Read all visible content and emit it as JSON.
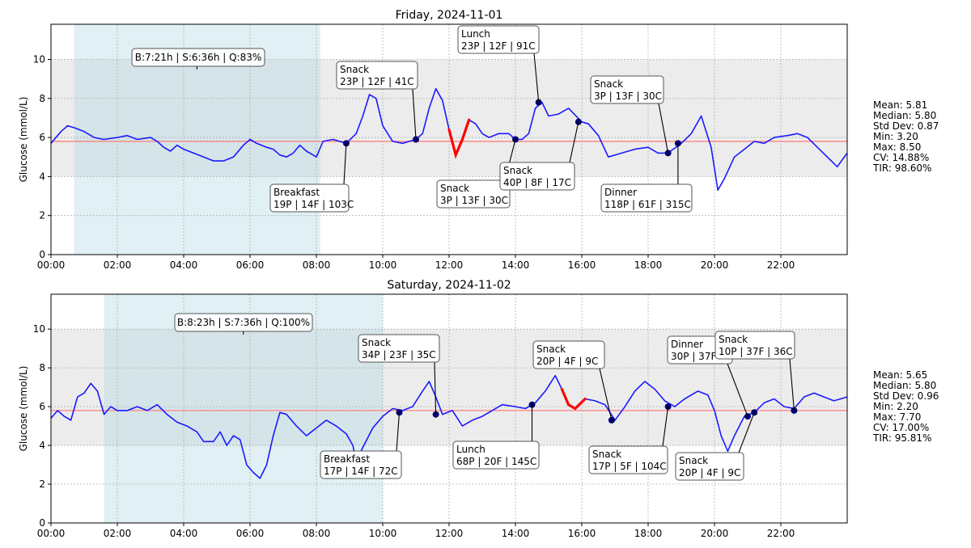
{
  "chart_data": [
    {
      "type": "line",
      "title": "Friday, 2024-11-01",
      "xlabel": "",
      "ylabel": "Glucose (mmol/L)",
      "xlim": [
        "00:00",
        "24:00"
      ],
      "ylim": [
        0,
        11.8
      ],
      "x_ticks": [
        "00:00",
        "02:00",
        "04:00",
        "06:00",
        "08:00",
        "10:00",
        "12:00",
        "14:00",
        "16:00",
        "18:00",
        "20:00",
        "22:00"
      ],
      "y_ticks": [
        0,
        2,
        4,
        6,
        8,
        10
      ],
      "grid": true,
      "colors": {
        "line": "#1a1aff",
        "highlight": "#ff0000",
        "mean_line": "#ff8080",
        "target_band": "#ececec",
        "sleep_band": "#add8e6",
        "marker": "#00006e"
      },
      "target_range": [
        4,
        10
      ],
      "mean_line": 5.8,
      "sleep_window": [
        "00:42",
        "08:07"
      ],
      "sleep_label": "B:7:21h | S:6:36h | Q:83%",
      "sleep_label_time": "04:24",
      "series": [
        {
          "values": [
            [
              0,
              5.7
            ],
            [
              0.3,
              6.3
            ],
            [
              0.5,
              6.6
            ],
            [
              0.7,
              6.5
            ],
            [
              1,
              6.3
            ],
            [
              1.3,
              6.0
            ],
            [
              1.6,
              5.9
            ],
            [
              2,
              6.0
            ],
            [
              2.3,
              6.1
            ],
            [
              2.6,
              5.9
            ],
            [
              3,
              6.0
            ],
            [
              3.2,
              5.8
            ],
            [
              3.4,
              5.5
            ],
            [
              3.6,
              5.3
            ],
            [
              3.8,
              5.6
            ],
            [
              4,
              5.4
            ],
            [
              4.3,
              5.2
            ],
            [
              4.6,
              5.0
            ],
            [
              4.9,
              4.8
            ],
            [
              5.2,
              4.8
            ],
            [
              5.5,
              5.0
            ],
            [
              5.8,
              5.6
            ],
            [
              6,
              5.9
            ],
            [
              6.2,
              5.7
            ],
            [
              6.5,
              5.5
            ],
            [
              6.7,
              5.4
            ],
            [
              6.9,
              5.1
            ],
            [
              7.1,
              5.0
            ],
            [
              7.3,
              5.2
            ],
            [
              7.5,
              5.6
            ],
            [
              7.7,
              5.3
            ],
            [
              8,
              5.0
            ],
            [
              8.2,
              5.8
            ],
            [
              8.5,
              5.9
            ],
            [
              8.9,
              5.7
            ],
            [
              9.2,
              6.2
            ],
            [
              9.4,
              7.1
            ],
            [
              9.6,
              8.2
            ],
            [
              9.8,
              8.0
            ],
            [
              10,
              6.6
            ],
            [
              10.3,
              5.8
            ],
            [
              10.6,
              5.7
            ],
            [
              11,
              5.9
            ],
            [
              11.2,
              6.2
            ],
            [
              11.4,
              7.5
            ],
            [
              11.6,
              8.5
            ],
            [
              11.8,
              7.9
            ],
            [
              12,
              6.4
            ],
            [
              12.2,
              5.1
            ],
            [
              12.4,
              5.9
            ],
            [
              12.6,
              6.9
            ],
            [
              12.8,
              6.7
            ],
            [
              13,
              6.2
            ],
            [
              13.2,
              6.0
            ],
            [
              13.5,
              6.2
            ],
            [
              13.8,
              6.2
            ],
            [
              14,
              5.9
            ],
            [
              14.2,
              5.9
            ],
            [
              14.4,
              6.2
            ],
            [
              14.6,
              7.5
            ],
            [
              14.8,
              7.8
            ],
            [
              15,
              7.1
            ],
            [
              15.3,
              7.2
            ],
            [
              15.6,
              7.5
            ],
            [
              16,
              6.8
            ],
            [
              16.2,
              6.7
            ],
            [
              16.5,
              6.1
            ],
            [
              16.8,
              5.0
            ],
            [
              17.2,
              5.2
            ],
            [
              17.6,
              5.4
            ],
            [
              18,
              5.5
            ],
            [
              18.3,
              5.2
            ],
            [
              18.6,
              5.2
            ],
            [
              19,
              5.7
            ],
            [
              19.3,
              6.2
            ],
            [
              19.6,
              7.1
            ],
            [
              19.9,
              5.5
            ],
            [
              20.1,
              3.3
            ],
            [
              20.3,
              3.9
            ],
            [
              20.6,
              5.0
            ],
            [
              20.9,
              5.4
            ],
            [
              21.2,
              5.8
            ],
            [
              21.5,
              5.7
            ],
            [
              21.8,
              6.0
            ],
            [
              22.2,
              6.1
            ],
            [
              22.5,
              6.2
            ],
            [
              22.8,
              6.0
            ],
            [
              23.1,
              5.5
            ],
            [
              23.4,
              5.0
            ],
            [
              23.7,
              4.5
            ],
            [
              24,
              5.2
            ]
          ]
        }
      ],
      "highlight_segment": [
        "12:00",
        "12:36"
      ],
      "markers": [
        {
          "time": "08:54",
          "value": 5.7
        },
        {
          "time": "11:00",
          "value": 5.9
        },
        {
          "time": "14:00",
          "value": 5.9
        },
        {
          "time": "14:42",
          "value": 7.8
        },
        {
          "time": "15:54",
          "value": 6.8
        },
        {
          "time": "18:36",
          "value": 5.2
        },
        {
          "time": "18:54",
          "value": 5.7
        }
      ],
      "annotations": [
        {
          "title": "Breakfast",
          "detail": "19P | 14F | 103C",
          "time": "08:54"
        },
        {
          "title": "Snack",
          "detail": "23P | 12F | 41C",
          "time": "11:00"
        },
        {
          "title": "Lunch",
          "detail": "23P | 12F | 91C",
          "time": "14:42"
        },
        {
          "title": "Snack",
          "detail": "3P | 13F | 30C",
          "time": "14:00"
        },
        {
          "title": "Snack",
          "detail": "40P | 8F | 17C",
          "time": "15:54"
        },
        {
          "title": "Snack",
          "detail": "3P | 13F | 30C",
          "time": "18:36"
        },
        {
          "title": "Dinner",
          "detail": "118P | 61F | 315C",
          "time": "18:54"
        }
      ],
      "stats": [
        "Mean: 5.81",
        "Median: 5.80",
        "Std Dev: 0.87",
        "Min: 3.20",
        "Max: 8.50",
        "CV: 14.88%",
        "TIR: 98.60%"
      ]
    },
    {
      "type": "line",
      "title": "Saturday, 2024-11-02",
      "xlabel": "",
      "ylabel": "Glucose (mmol/L)",
      "xlim": [
        "00:00",
        "24:00"
      ],
      "ylim": [
        0,
        11.8
      ],
      "x_ticks": [
        "00:00",
        "02:00",
        "04:00",
        "06:00",
        "08:00",
        "10:00",
        "12:00",
        "14:00",
        "16:00",
        "18:00",
        "20:00",
        "22:00"
      ],
      "y_ticks": [
        0,
        2,
        4,
        6,
        8,
        10
      ],
      "grid": true,
      "colors": {
        "line": "#1a1aff",
        "highlight": "#ff0000",
        "mean_line": "#ff8080",
        "target_band": "#ececec",
        "sleep_band": "#add8e6",
        "marker": "#00006e"
      },
      "target_range": [
        4,
        10
      ],
      "mean_line": 5.8,
      "sleep_window": [
        "01:36",
        "10:00"
      ],
      "sleep_label": "B:8:23h | S:7:36h | Q:100%",
      "sleep_label_time": "05:48",
      "series": [
        {
          "values": [
            [
              0,
              5.4
            ],
            [
              0.2,
              5.8
            ],
            [
              0.4,
              5.5
            ],
            [
              0.6,
              5.3
            ],
            [
              0.8,
              6.5
            ],
            [
              1,
              6.7
            ],
            [
              1.2,
              7.2
            ],
            [
              1.4,
              6.8
            ],
            [
              1.6,
              5.6
            ],
            [
              1.8,
              6.0
            ],
            [
              2,
              5.8
            ],
            [
              2.3,
              5.8
            ],
            [
              2.6,
              6.0
            ],
            [
              2.9,
              5.8
            ],
            [
              3.2,
              6.1
            ],
            [
              3.5,
              5.6
            ],
            [
              3.8,
              5.2
            ],
            [
              4.1,
              5.0
            ],
            [
              4.4,
              4.7
            ],
            [
              4.6,
              4.2
            ],
            [
              4.9,
              4.2
            ],
            [
              5.1,
              4.7
            ],
            [
              5.3,
              4.0
            ],
            [
              5.5,
              4.5
            ],
            [
              5.7,
              4.3
            ],
            [
              5.9,
              3.0
            ],
            [
              6.1,
              2.6
            ],
            [
              6.3,
              2.3
            ],
            [
              6.5,
              3.0
            ],
            [
              6.7,
              4.5
            ],
            [
              6.9,
              5.7
            ],
            [
              7.1,
              5.6
            ],
            [
              7.4,
              5.0
            ],
            [
              7.7,
              4.5
            ],
            [
              8,
              4.9
            ],
            [
              8.3,
              5.3
            ],
            [
              8.6,
              5.0
            ],
            [
              8.9,
              4.6
            ],
            [
              9.1,
              4.0
            ],
            [
              9.2,
              3.2
            ],
            [
              9.4,
              3.9
            ],
            [
              9.7,
              4.9
            ],
            [
              10,
              5.5
            ],
            [
              10.3,
              5.9
            ],
            [
              10.6,
              5.8
            ],
            [
              10.9,
              6.0
            ],
            [
              11.2,
              6.8
            ],
            [
              11.4,
              7.3
            ],
            [
              11.6,
              6.5
            ],
            [
              11.8,
              5.6
            ],
            [
              12.1,
              5.8
            ],
            [
              12.4,
              5.0
            ],
            [
              12.7,
              5.3
            ],
            [
              13,
              5.5
            ],
            [
              13.3,
              5.8
            ],
            [
              13.6,
              6.1
            ],
            [
              14,
              6.0
            ],
            [
              14.3,
              5.9
            ],
            [
              14.6,
              6.2
            ],
            [
              14.9,
              6.8
            ],
            [
              15.2,
              7.6
            ],
            [
              15.4,
              6.9
            ],
            [
              15.6,
              6.1
            ],
            [
              15.8,
              5.9
            ],
            [
              16.1,
              6.4
            ],
            [
              16.4,
              6.3
            ],
            [
              16.7,
              6.1
            ],
            [
              17,
              5.3
            ],
            [
              17.3,
              6.0
            ],
            [
              17.6,
              6.8
            ],
            [
              17.9,
              7.3
            ],
            [
              18.2,
              6.9
            ],
            [
              18.5,
              6.3
            ],
            [
              18.8,
              6.0
            ],
            [
              19.1,
              6.4
            ],
            [
              19.5,
              6.8
            ],
            [
              19.8,
              6.6
            ],
            [
              20,
              5.8
            ],
            [
              20.2,
              4.5
            ],
            [
              20.4,
              3.7
            ],
            [
              20.6,
              4.5
            ],
            [
              20.9,
              5.5
            ],
            [
              21.2,
              5.7
            ],
            [
              21.5,
              6.2
            ],
            [
              21.8,
              6.4
            ],
            [
              22.1,
              6.0
            ],
            [
              22.4,
              5.9
            ],
            [
              22.7,
              6.5
            ],
            [
              23,
              6.7
            ],
            [
              23.3,
              6.5
            ],
            [
              23.6,
              6.3
            ],
            [
              24,
              6.5
            ]
          ]
        }
      ],
      "highlight_segment": [
        "15:24",
        "16:12"
      ],
      "markers": [
        {
          "time": "10:30",
          "value": 5.7
        },
        {
          "time": "11:36",
          "value": 5.6
        },
        {
          "time": "14:30",
          "value": 6.1
        },
        {
          "time": "16:54",
          "value": 5.3
        },
        {
          "time": "18:36",
          "value": 6.0
        },
        {
          "time": "21:00",
          "value": 5.5
        },
        {
          "time": "21:12",
          "value": 5.7
        },
        {
          "time": "22:24",
          "value": 5.8
        }
      ],
      "annotations": [
        {
          "title": "Breakfast",
          "detail": "17P | 14F | 72C",
          "time": "10:30"
        },
        {
          "title": "Snack",
          "detail": "34P | 23F | 35C",
          "time": "11:36"
        },
        {
          "title": "Lunch",
          "detail": "68P | 20F | 145C",
          "time": "14:30"
        },
        {
          "title": "Snack",
          "detail": "20P | 4F | 9C",
          "time": "16:54"
        },
        {
          "title": "Snack",
          "detail": "17P | 5F | 104C",
          "time": "18:36"
        },
        {
          "title": "Dinner",
          "detail": "30P | 37F",
          "time": "21:00"
        },
        {
          "title": "Snack",
          "detail": "10P | 37F | 36C",
          "time": "22:24"
        },
        {
          "title": "Snack",
          "detail": "20P | 4F | 9C",
          "time": "21:12"
        }
      ],
      "stats": [
        "Mean: 5.65",
        "Median: 5.80",
        "Std Dev: 0.96",
        "Min: 2.20",
        "Max: 7.70",
        "CV: 17.00%",
        "TIR: 95.81%"
      ]
    }
  ]
}
